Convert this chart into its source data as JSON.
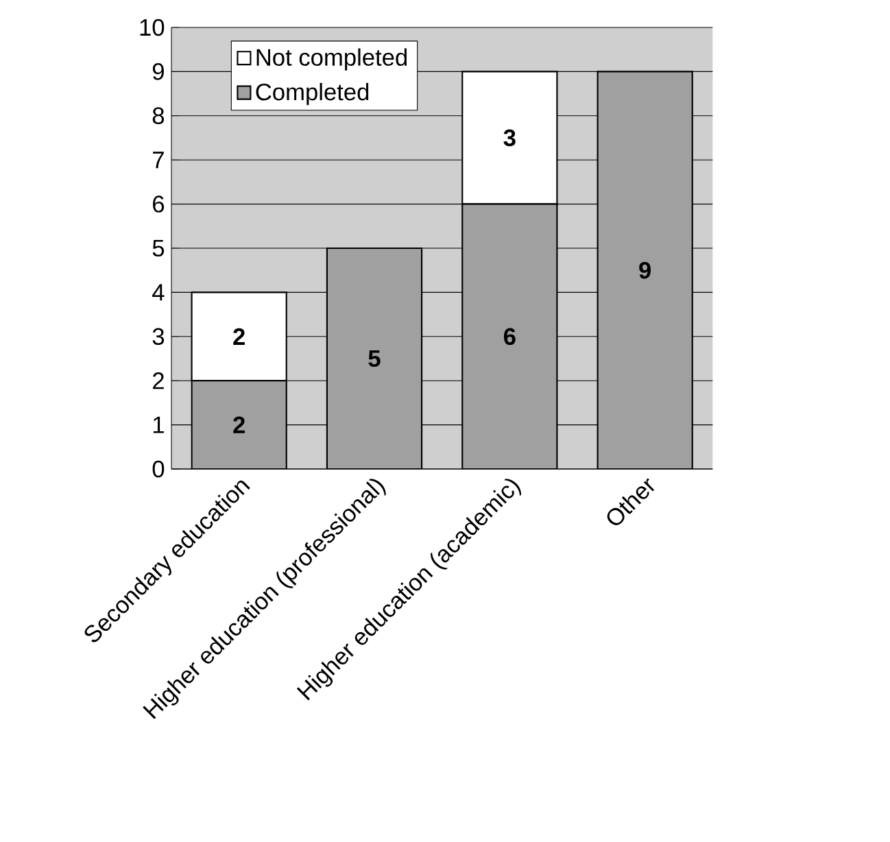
{
  "chart_data": {
    "type": "bar",
    "stacked": true,
    "categories": [
      "Secondary education",
      "Higher education (professional)",
      "Higher education (academic)",
      "Other"
    ],
    "series": [
      {
        "name": "Completed",
        "color": "#a0a0a0",
        "values": [
          2,
          5,
          6,
          9
        ],
        "value_labels": [
          "2",
          "5",
          "6",
          "9"
        ]
      },
      {
        "name": "Not completed",
        "color": "#ffffff",
        "values": [
          2,
          null,
          3,
          null
        ],
        "value_labels": [
          "2",
          null,
          "3",
          null
        ]
      }
    ],
    "ylim": [
      0,
      10
    ],
    "yticks": [
      0,
      1,
      2,
      3,
      4,
      5,
      6,
      7,
      8,
      9,
      10
    ],
    "grid": "y",
    "legend": "top left"
  }
}
